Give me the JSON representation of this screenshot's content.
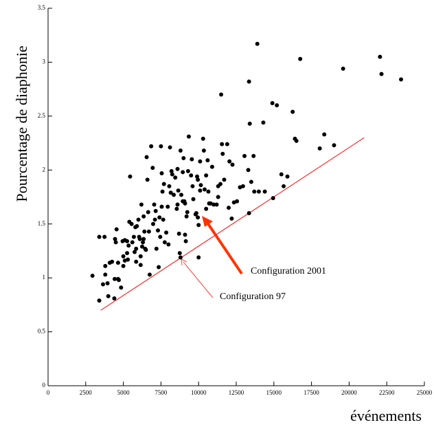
{
  "chart_data": {
    "type": "scatter",
    "x_label": "événements",
    "y_label": "Pourcentage de diaphonie",
    "xlim": [
      0,
      25000
    ],
    "ylim": [
      0,
      3.5
    ],
    "xticks": [
      0,
      2500,
      5000,
      7500,
      10000,
      12500,
      15000,
      17500,
      20000,
      22500,
      25000
    ],
    "yticks": [
      0,
      0.5,
      1,
      1.5,
      2,
      2.5,
      3,
      3.5
    ],
    "color": "#000000",
    "x": [
      2950,
      3400,
      3750,
      3400,
      3800,
      3650,
      3800,
      3950,
      4100,
      4250,
      4000,
      4400,
      4425,
      4650,
      4450,
      4550,
      4500,
      4700,
      4850,
      5000,
      4650,
      4950,
      5100,
      5250,
      5300,
      5000,
      5250,
      5350,
      5100,
      5400,
      5450,
      5600,
      5700,
      5550,
      5750,
      5800,
      5900,
      5850,
      5850,
      6000,
      6050,
      6100,
      6150,
      6150,
      6200,
      6250,
      6300,
      6350,
      6350,
      6400,
      6450,
      6500,
      6550,
      6600,
      6650,
      6750,
      6700,
      6850,
      6950,
      6980,
      7050,
      7100,
      7150,
      7200,
      7300,
      7350,
      7400,
      7450,
      7500,
      7550,
      7550,
      7600,
      7650,
      7700,
      7750,
      7850,
      7950,
      8000,
      8050,
      8100,
      8150,
      8200,
      8250,
      8350,
      8450,
      8600,
      8550,
      8600,
      8650,
      8700,
      8750,
      8800,
      8850,
      8950,
      8950,
      9050,
      9000,
      9100,
      9100,
      8800,
      9150,
      9200,
      9250,
      9300,
      9350,
      9500,
      9550,
      9600,
      9650,
      9800,
      9850,
      9900,
      9950,
      10000,
      9950,
      10000,
      10100,
      10100,
      10150,
      10300,
      10350,
      10400,
      10500,
      10500,
      10600,
      10650,
      10700,
      10800,
      10900,
      11000,
      11200,
      11300,
      11300,
      11450,
      11500,
      11550,
      11600,
      11700,
      11900,
      12000,
      12050,
      12200,
      12250,
      12350,
      12550,
      12750,
      12950,
      13050,
      13300,
      13350,
      13400,
      13350,
      13500,
      13650,
      13700,
      13900,
      14000,
      14300,
      14400,
      14900,
      14950,
      15200,
      15500,
      15650,
      15900,
      16250,
      16400,
      16500,
      16750,
      18050,
      18350,
      19000,
      19600,
      22050,
      22150,
      23450
    ],
    "y": [
      1.02,
      1.38,
      1.38,
      0.79,
      1.11,
      0.94,
      1.03,
      0.95,
      1.14,
      1.15,
      0.83,
      0.81,
      0.99,
      1.14,
      1.36,
      1.45,
      1.33,
      0.98,
      0.91,
      1.11,
      0.99,
      1.34,
      1.35,
      1.34,
      1.17,
      1.2,
      1.23,
      1.3,
      1.16,
      1.52,
      1.94,
      1.33,
      1.38,
      1.5,
      1.24,
      1.47,
      1.48,
      1.27,
      1.15,
      1.54,
      1.38,
      1.36,
      1.2,
      1.12,
      1.68,
      1.29,
      1.33,
      1.36,
      1.57,
      1.43,
      1.27,
      1.26,
      2.12,
      1.91,
      1.61,
      1.03,
      1.43,
      2.22,
      2.02,
      1.5,
      1.68,
      1.54,
      1.62,
      1.27,
      1.44,
      1.1,
      1.56,
      1.38,
      2.22,
      1.97,
      1.66,
      1.8,
      1.54,
      1.87,
      1.33,
      1.42,
      1.66,
      1.31,
      1.85,
      2.21,
      1.79,
      1.99,
      1.96,
      1.77,
      1.93,
      1.68,
      1.64,
      2.01,
      1.81,
      1.41,
      1.23,
      2.18,
      1.77,
      1.98,
      1.71,
      1.71,
      2.11,
      1.69,
      1.4,
      1.19,
      1.34,
      1.57,
      1.61,
      1.99,
      2.31,
      1.95,
      2.1,
      1.85,
      1.73,
      1.59,
      1.6,
      1.94,
      1.56,
      1.19,
      1.91,
      1.49,
      2.08,
      1.81,
      1.86,
      2.29,
      2.18,
      1.82,
      1.95,
      1.64,
      2.09,
      1.8,
      1.69,
      1.69,
      2.03,
      1.68,
      1.68,
      1.85,
      1.75,
      1.87,
      2.7,
      2.24,
      2.15,
      1.91,
      2.24,
      1.65,
      2.08,
      1.55,
      2.05,
      1.7,
      1.71,
      1.84,
      1.85,
      2.13,
      2.0,
      2.82,
      2.43,
      1.6,
      1.89,
      2.13,
      1.8,
      3.17,
      1.8,
      2.44,
      1.8,
      2.62,
      1.74,
      2.6,
      1.96,
      1.85,
      1.94,
      2.54,
      2.29,
      2.27,
      3.03,
      2.2,
      2.33,
      2.23,
      2.94,
      3.05,
      2.89,
      2.84
    ],
    "lines": [
      {
        "color": "#ff2a2a",
        "x": [
          3500,
          21000
        ],
        "y": [
          0.7,
          2.3
        ]
      }
    ],
    "annotations": [
      "Configuration 2001",
      "Configuration 97"
    ]
  }
}
